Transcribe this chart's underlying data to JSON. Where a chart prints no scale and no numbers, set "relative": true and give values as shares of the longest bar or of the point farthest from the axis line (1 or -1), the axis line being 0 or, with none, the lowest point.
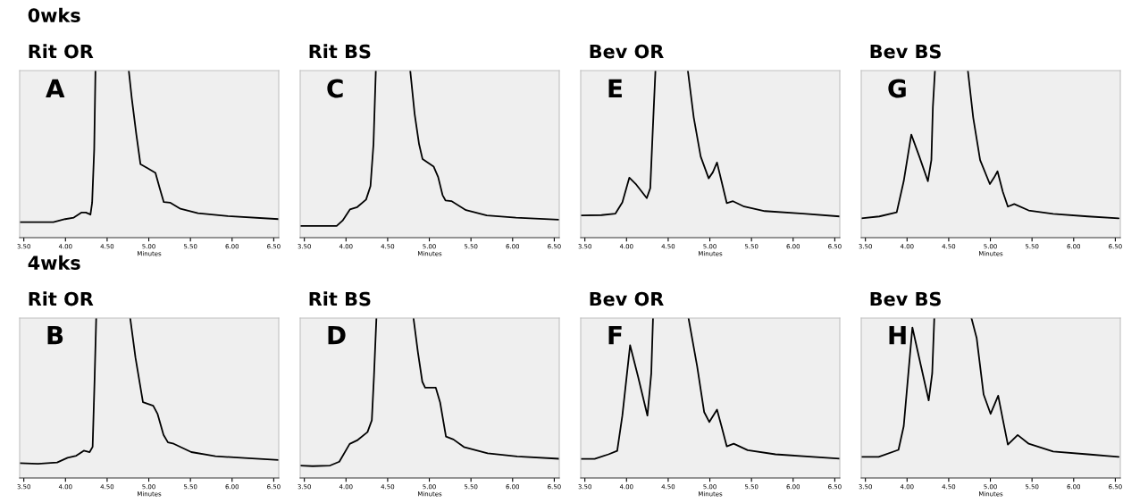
{
  "chart_data": [
    {
      "type": "line",
      "title": "Rit OR",
      "xlabel": "Minutes",
      "annotations": [
        "0wks",
        "A"
      ],
      "relative": true,
      "grid": false,
      "legend": false,
      "xlim": [
        3.45,
        6.56
      ],
      "xticks": [
        {
          "value": 3.5,
          "label": "3.50"
        },
        {
          "value": 4.0,
          "label": "4.00"
        },
        {
          "value": 4.5,
          "label": "4.50"
        },
        {
          "value": 5.0,
          "label": "5.00"
        },
        {
          "value": 5.5,
          "label": "5.50"
        },
        {
          "value": 6.0,
          "label": "6.00"
        },
        {
          "value": 6.5,
          "label": "6.50"
        }
      ],
      "tick_labels": "x",
      "series": [
        {
          "color": "#000000",
          "x": [
            3.45,
            3.855,
            3.997,
            4.1,
            4.19,
            4.245,
            4.3,
            4.32,
            4.345,
            4.36,
            4.5,
            4.76,
            4.796,
            4.85,
            4.9,
            4.99,
            5.08,
            5.13,
            5.18,
            5.26,
            5.38,
            5.59,
            5.95,
            6.56
          ],
          "values": [
            0.093,
            0.093,
            0.111,
            0.12,
            0.15,
            0.15,
            0.138,
            0.209,
            0.53,
            1.0,
            null,
            1.0,
            0.834,
            0.62,
            0.44,
            0.414,
            0.388,
            0.298,
            0.213,
            0.209,
            0.173,
            0.146,
            0.129,
            0.111
          ]
        }
      ]
    },
    {
      "type": "line",
      "title": "Rit BS",
      "xlabel": "Minutes",
      "annotations": [
        "C"
      ],
      "relative": true,
      "grid": false,
      "legend": false,
      "xlim": [
        3.45,
        6.56
      ],
      "xticks": [
        {
          "value": 3.5,
          "label": "3.50"
        },
        {
          "value": 4.0,
          "label": "4.00"
        },
        {
          "value": 4.5,
          "label": "4.50"
        },
        {
          "value": 5.0,
          "label": "5.00"
        },
        {
          "value": 5.5,
          "label": "5.50"
        },
        {
          "value": 6.0,
          "label": "6.00"
        },
        {
          "value": 6.5,
          "label": "6.50"
        }
      ],
      "tick_labels": "x",
      "series": [
        {
          "color": "#000000",
          "x": [
            3.45,
            3.888,
            3.959,
            4.047,
            4.135,
            4.241,
            4.294,
            4.33,
            4.358,
            4.5,
            4.771,
            4.824,
            4.877,
            4.919,
            5.053,
            5.106,
            5.159,
            5.194,
            5.265,
            5.44,
            5.69,
            6.04,
            6.553
          ],
          "values": [
            0.07,
            0.07,
            0.102,
            0.169,
            0.183,
            0.228,
            0.309,
            0.56,
            1.0,
            null,
            1.0,
            0.74,
            0.56,
            0.47,
            0.425,
            0.363,
            0.255,
            0.223,
            0.219,
            0.165,
            0.133,
            0.12,
            0.108
          ]
        }
      ]
    },
    {
      "type": "line",
      "title": "Bev OR",
      "xlabel": "Minutes",
      "annotations": [
        "E"
      ],
      "relative": true,
      "grid": false,
      "legend": false,
      "xlim": [
        3.45,
        6.56
      ],
      "xticks": [
        {
          "value": 3.5,
          "label": "3.50"
        },
        {
          "value": 4.0,
          "label": "4.00"
        },
        {
          "value": 4.5,
          "label": "4.50"
        },
        {
          "value": 5.0,
          "label": "5.00"
        },
        {
          "value": 5.5,
          "label": "5.50"
        },
        {
          "value": 6.0,
          "label": "6.00"
        },
        {
          "value": 6.5,
          "label": "6.50"
        }
      ],
      "tick_labels": "x",
      "series": [
        {
          "color": "#000000",
          "x": [
            3.45,
            3.7,
            3.867,
            3.95,
            4.034,
            4.118,
            4.243,
            4.285,
            4.318,
            4.347,
            4.5,
            4.736,
            4.807,
            4.89,
            4.986,
            5.036,
            5.086,
            5.14,
            5.203,
            5.278,
            5.412,
            5.66,
            6.12,
            6.56
          ],
          "values": [
            0.133,
            0.135,
            0.144,
            0.211,
            0.359,
            0.317,
            0.237,
            0.296,
            0.677,
            1.0,
            null,
            1.0,
            0.719,
            0.486,
            0.355,
            0.391,
            0.45,
            0.338,
            0.207,
            0.218,
            0.186,
            0.159,
            0.144,
            0.127
          ]
        }
      ]
    },
    {
      "type": "line",
      "title": "Bev BS",
      "xlabel": "Minutes",
      "annotations": [
        "G"
      ],
      "relative": true,
      "grid": false,
      "legend": false,
      "xlim": [
        3.45,
        6.56
      ],
      "xticks": [
        {
          "value": 3.5,
          "label": "3.50"
        },
        {
          "value": 4.0,
          "label": "4.00"
        },
        {
          "value": 4.5,
          "label": "4.50"
        },
        {
          "value": 5.0,
          "label": "5.00"
        },
        {
          "value": 5.5,
          "label": "5.50"
        },
        {
          "value": 6.0,
          "label": "6.00"
        },
        {
          "value": 6.5,
          "label": "6.50"
        }
      ],
      "tick_labels": "x",
      "series": [
        {
          "color": "#000000",
          "x": [
            3.45,
            3.667,
            3.876,
            3.96,
            4.051,
            4.147,
            4.25,
            4.292,
            4.31,
            4.335,
            4.5,
            4.73,
            4.794,
            4.877,
            4.994,
            5.044,
            5.086,
            5.149,
            5.21,
            5.287,
            5.46,
            5.754,
            6.17,
            6.54
          ],
          "values": [
            0.116,
            0.127,
            0.152,
            0.338,
            0.617,
            0.486,
            0.338,
            0.465,
            0.782,
            1.0,
            null,
            1.0,
            0.719,
            0.465,
            0.321,
            0.359,
            0.397,
            0.275,
            0.186,
            0.201,
            0.163,
            0.142,
            0.127,
            0.116
          ]
        }
      ]
    },
    {
      "type": "line",
      "title": "Rit OR",
      "xlabel": "Minutes",
      "annotations": [
        "4wks",
        "B"
      ],
      "relative": true,
      "grid": false,
      "legend": false,
      "xlim": [
        3.45,
        6.56
      ],
      "xticks": [
        {
          "value": 3.5,
          "label": "3.50"
        },
        {
          "value": 4.0,
          "label": "4.00"
        },
        {
          "value": 4.5,
          "label": "4.50"
        },
        {
          "value": 5.0,
          "label": "5.00"
        },
        {
          "value": 5.5,
          "label": "5.50"
        },
        {
          "value": 6.0,
          "label": "6.00"
        },
        {
          "value": 6.5,
          "label": "6.50"
        }
      ],
      "tick_labels": "x",
      "series": [
        {
          "color": "#000000",
          "x": [
            3.45,
            3.67,
            3.9,
            4.025,
            4.13,
            4.22,
            4.29,
            4.326,
            4.35,
            4.369,
            4.5,
            4.777,
            4.84,
            4.93,
            5.053,
            5.106,
            5.177,
            5.23,
            5.3,
            5.51,
            5.8,
            6.15,
            6.56
          ],
          "values": [
            0.093,
            0.089,
            0.097,
            0.126,
            0.139,
            0.171,
            0.162,
            0.195,
            0.623,
            1.0,
            null,
            1.0,
            0.753,
            0.474,
            0.452,
            0.4,
            0.27,
            0.223,
            0.214,
            0.162,
            0.136,
            0.125,
            0.112
          ]
        }
      ]
    },
    {
      "type": "line",
      "title": "Rit BS",
      "xlabel": "Minutes",
      "annotations": [
        "D"
      ],
      "relative": true,
      "grid": false,
      "legend": false,
      "xlim": [
        3.45,
        6.56
      ],
      "xticks": [
        {
          "value": 3.5,
          "label": "3.50"
        },
        {
          "value": 4.0,
          "label": "4.00"
        },
        {
          "value": 4.5,
          "label": "4.50"
        },
        {
          "value": 5.0,
          "label": "5.00"
        },
        {
          "value": 5.5,
          "label": "5.50"
        },
        {
          "value": 6.0,
          "label": "6.00"
        },
        {
          "value": 6.5,
          "label": "6.50"
        }
      ],
      "tick_labels": "x",
      "series": [
        {
          "color": "#000000",
          "x": [
            3.45,
            3.6,
            3.81,
            3.92,
            4.044,
            4.133,
            4.258,
            4.31,
            4.336,
            4.365,
            4.5,
            4.81,
            4.863,
            4.916,
            4.95,
            5.077,
            5.13,
            5.2,
            5.29,
            5.415,
            5.7,
            6.055,
            6.56
          ],
          "values": [
            0.078,
            0.074,
            0.078,
            0.102,
            0.213,
            0.235,
            0.287,
            0.361,
            0.639,
            1.0,
            null,
            1.0,
            0.787,
            0.602,
            0.565,
            0.565,
            0.472,
            0.259,
            0.241,
            0.194,
            0.154,
            0.135,
            0.12
          ]
        }
      ]
    },
    {
      "type": "line",
      "title": "Bev OR",
      "xlabel": "Minutes",
      "annotations": [
        "F"
      ],
      "relative": true,
      "grid": false,
      "legend": false,
      "xlim": [
        3.45,
        6.56
      ],
      "xticks": [
        {
          "value": 3.5,
          "label": "3.50"
        },
        {
          "value": 4.0,
          "label": "4.00"
        },
        {
          "value": 4.5,
          "label": "4.50"
        },
        {
          "value": 5.0,
          "label": "5.00"
        },
        {
          "value": 5.5,
          "label": "5.50"
        },
        {
          "value": 6.0,
          "label": "6.00"
        },
        {
          "value": 6.5,
          "label": "6.50"
        }
      ],
      "tick_labels": "x",
      "series": [
        {
          "color": "#000000",
          "x": [
            3.45,
            3.617,
            3.784,
            3.888,
            3.95,
            4.043,
            4.139,
            4.251,
            4.297,
            4.318,
            4.5,
            4.744,
            4.848,
            4.932,
            4.994,
            5.086,
            5.14,
            5.203,
            5.287,
            5.454,
            5.787,
            6.56
          ],
          "values": [
            0.119,
            0.119,
            0.148,
            0.17,
            0.39,
            0.83,
            0.633,
            0.39,
            0.654,
            1.0,
            null,
            1.0,
            0.698,
            0.412,
            0.35,
            0.427,
            0.324,
            0.198,
            0.214,
            0.174,
            0.148,
            0.121
          ]
        }
      ]
    },
    {
      "type": "line",
      "title": "Bev BS",
      "xlabel": "Minutes",
      "annotations": [
        "H"
      ],
      "relative": true,
      "grid": false,
      "legend": false,
      "xlim": [
        3.45,
        6.56
      ],
      "xticks": [
        {
          "value": 3.5,
          "label": "3.50"
        },
        {
          "value": 4.0,
          "label": "4.00"
        },
        {
          "value": 4.5,
          "label": "4.50"
        },
        {
          "value": 5.0,
          "label": "5.00"
        },
        {
          "value": 5.5,
          "label": "5.50"
        },
        {
          "value": 6.0,
          "label": "6.00"
        },
        {
          "value": 6.5,
          "label": "6.50"
        }
      ],
      "tick_labels": "x",
      "series": [
        {
          "color": "#000000",
          "x": [
            3.45,
            3.659,
            3.897,
            3.96,
            4.064,
            4.168,
            4.26,
            4.302,
            4.327,
            4.5,
            4.773,
            4.836,
            4.919,
            5.003,
            5.094,
            5.149,
            5.21,
            5.328,
            5.461,
            5.754,
            6.17,
            6.54
          ],
          "values": [
            0.132,
            0.132,
            0.176,
            0.324,
            0.941,
            0.698,
            0.485,
            0.654,
            1.0,
            null,
            1.0,
            0.874,
            0.522,
            0.401,
            0.515,
            0.368,
            0.209,
            0.269,
            0.214,
            0.165,
            0.148,
            0.132
          ]
        }
      ]
    }
  ]
}
